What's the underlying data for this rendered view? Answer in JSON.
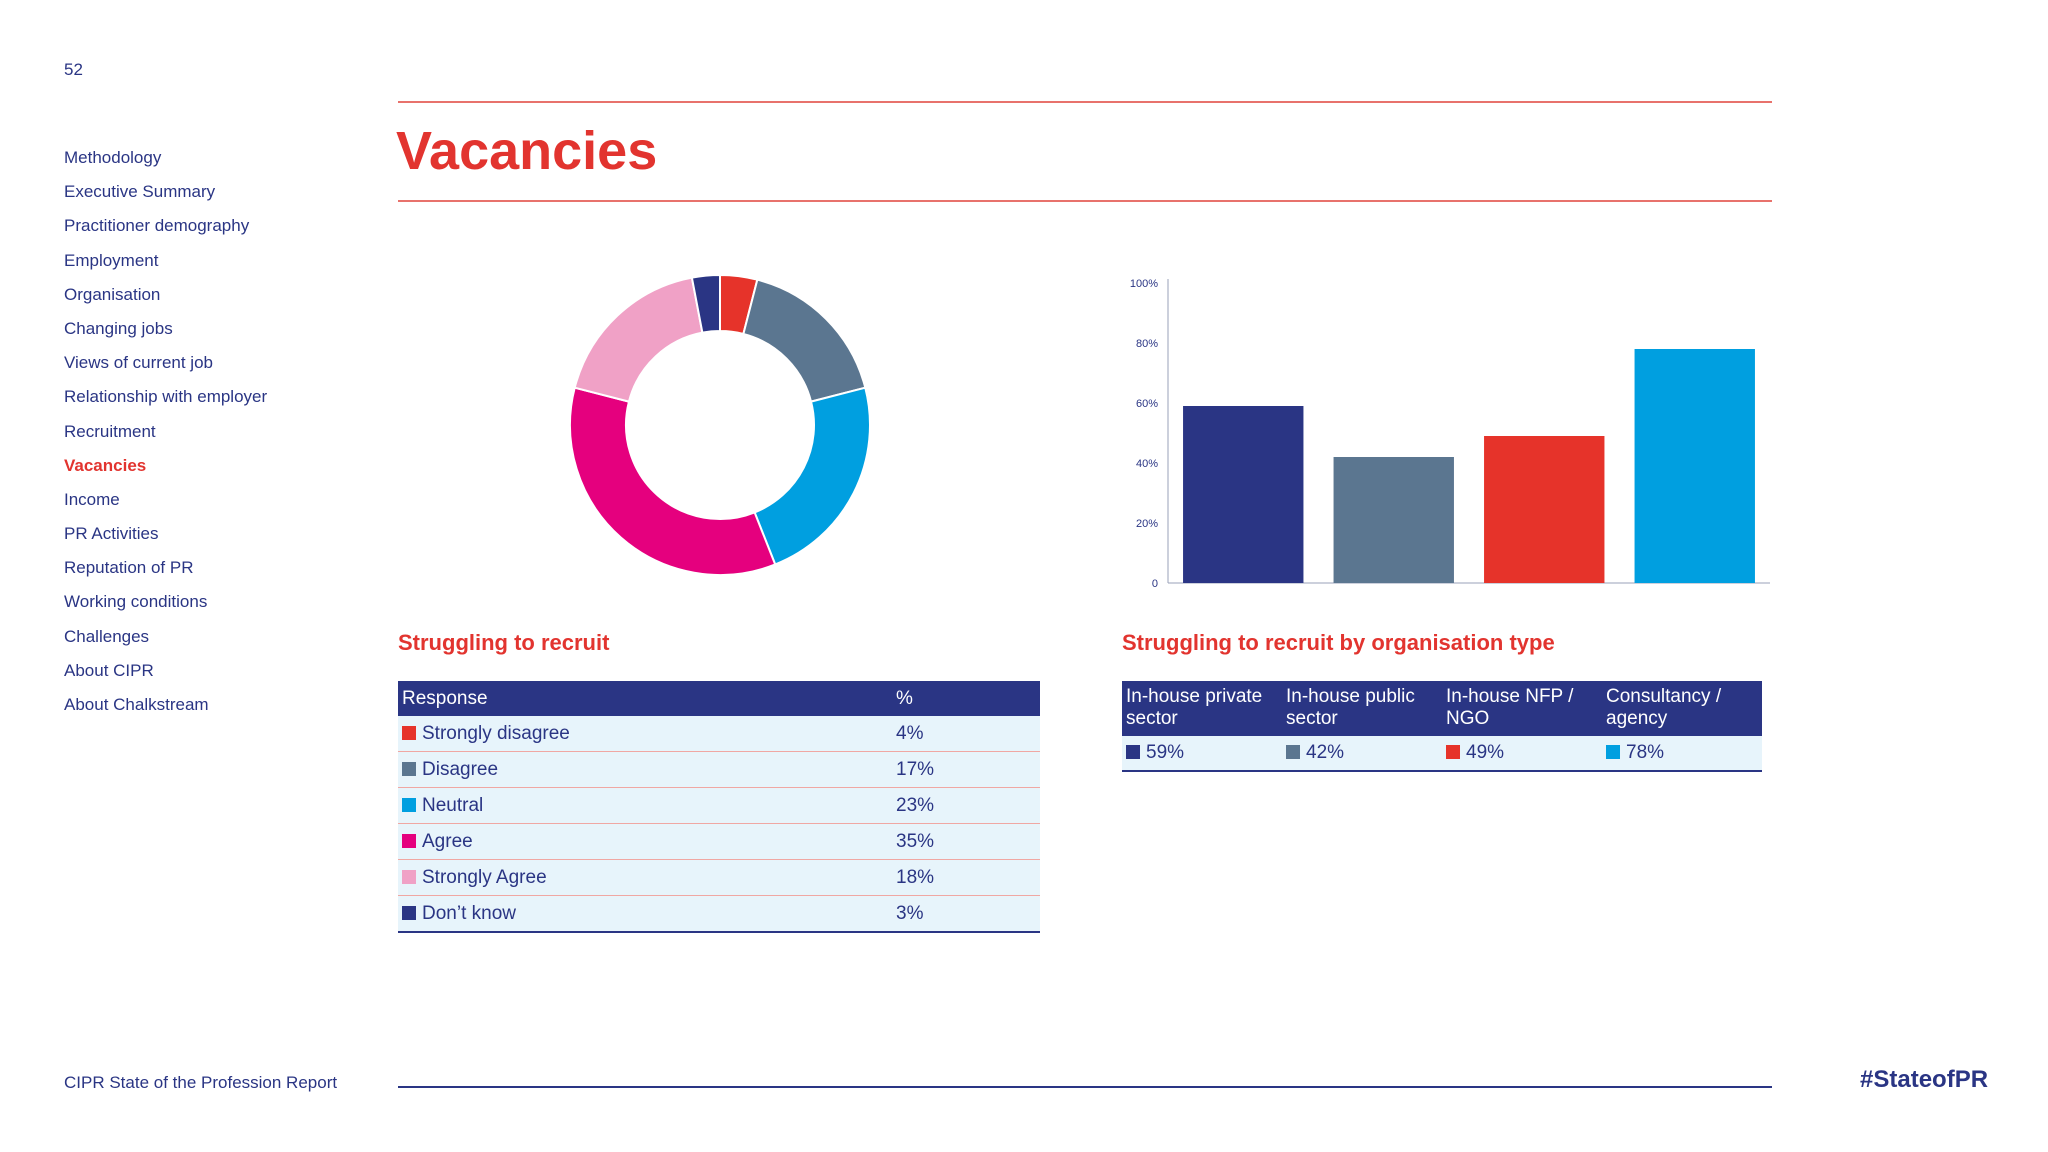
{
  "page_number": "52",
  "title": "Vacancies",
  "nav": [
    {
      "label": "Methodology",
      "active": false
    },
    {
      "label": "Executive Summary",
      "active": false
    },
    {
      "label": "Practitioner demography",
      "active": false
    },
    {
      "label": "Employment",
      "active": false
    },
    {
      "label": "Organisation",
      "active": false
    },
    {
      "label": "Changing jobs",
      "active": false
    },
    {
      "label": "Views of current job",
      "active": false
    },
    {
      "label": "Relationship with employer",
      "active": false
    },
    {
      "label": "Recruitment",
      "active": false
    },
    {
      "label": "Vacancies",
      "active": true
    },
    {
      "label": "Income",
      "active": false
    },
    {
      "label": "PR Activities",
      "active": false
    },
    {
      "label": "Reputation of PR",
      "active": false
    },
    {
      "label": "Working conditions",
      "active": false
    },
    {
      "label": "Challenges",
      "active": false
    },
    {
      "label": "About CIPR",
      "active": false
    },
    {
      "label": "About Chalkstream",
      "active": false
    }
  ],
  "pie_section": {
    "title": "Struggling to recruit",
    "headers": {
      "response": "Response",
      "pct": "%"
    },
    "rows": [
      {
        "label": "Strongly disagree",
        "value": "4%"
      },
      {
        "label": "Disagree",
        "value": "17%"
      },
      {
        "label": "Neutral",
        "value": "23%"
      },
      {
        "label": "Agree",
        "value": "35%"
      },
      {
        "label": "Strongly Agree",
        "value": "18%"
      },
      {
        "label": "Don’t know",
        "value": "3%"
      }
    ]
  },
  "bar_section": {
    "title": "Struggling to recruit by organisation type",
    "headers": [
      "In-house private sector",
      "In-house public sector",
      "In-house NFP / NGO",
      "Consultancy / agency"
    ],
    "values": [
      "59%",
      "42%",
      "49%",
      "78%"
    ]
  },
  "footer": {
    "left": "CIPR State of the Profession Report",
    "right": "#StateofPR"
  },
  "colors": {
    "accent_red": "#e2342f",
    "navy": "#2a3584",
    "slate": "#5b7690",
    "sky": "#009fe0",
    "magenta": "#e5007e",
    "pink": "#f0a1c6",
    "red": "#e6332a"
  },
  "chart_data": [
    {
      "type": "pie",
      "style": "donut",
      "title": "Struggling to recruit",
      "categories": [
        "Strongly disagree",
        "Disagree",
        "Neutral",
        "Agree",
        "Strongly Agree",
        "Don’t know"
      ],
      "values": [
        4,
        17,
        23,
        35,
        18,
        3
      ],
      "colors": [
        "#e6332a",
        "#5b7690",
        "#009fe0",
        "#e5007e",
        "#f0a1c6",
        "#2a3584"
      ]
    },
    {
      "type": "bar",
      "title": "Struggling to recruit by organisation type",
      "categories": [
        "In-house private sector",
        "In-house public sector",
        "In-house NFP / NGO",
        "Consultancy / agency"
      ],
      "values": [
        59,
        42,
        49,
        78
      ],
      "colors": [
        "#2a3584",
        "#5b7690",
        "#e6332a",
        "#009fe0"
      ],
      "ylim": [
        0,
        100
      ],
      "yticks": [
        "0",
        "20%",
        "40%",
        "60%",
        "80%",
        "100%"
      ],
      "grid": false
    }
  ]
}
